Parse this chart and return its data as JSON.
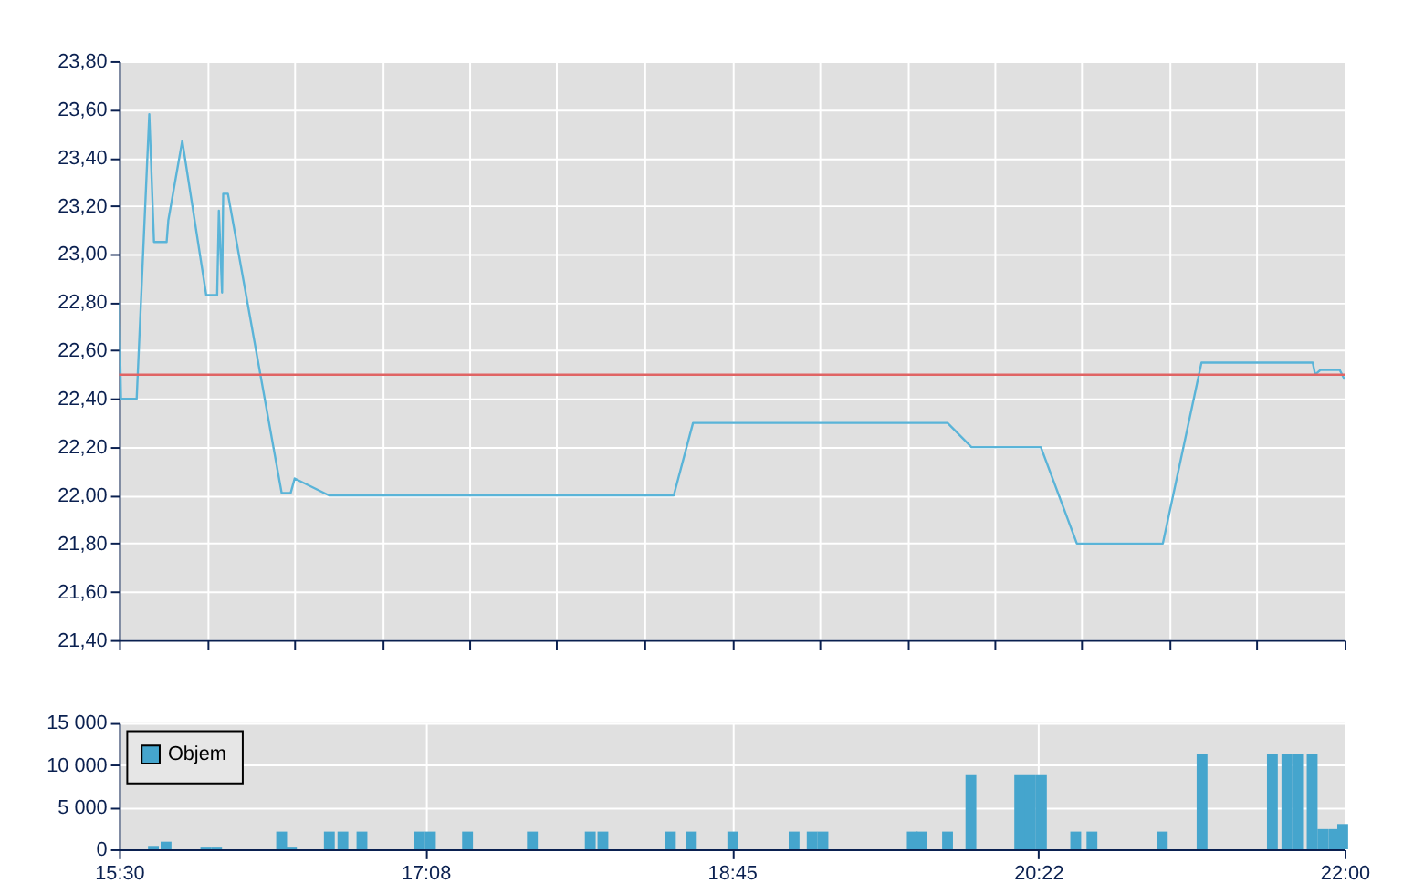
{
  "chart_data": [
    {
      "type": "line",
      "x": [
        15.5,
        15.51,
        15.593,
        15.66,
        15.685,
        15.752,
        15.761,
        15.835,
        15.962,
        16.02,
        16.029,
        16.046,
        16.052,
        16.077,
        16.362,
        16.41,
        16.431,
        16.613,
        18.442,
        18.544,
        19.894,
        20.021,
        20.389,
        20.58,
        21.036,
        21.241,
        21.831,
        21.844,
        21.873,
        21.974,
        22.0
      ],
      "series": [
        {
          "color": "#5ab4d8",
          "values": [
            22.8,
            22.4,
            22.4,
            23.58,
            23.05,
            23.05,
            23.14,
            23.47,
            22.83,
            22.83,
            23.18,
            22.84,
            23.25,
            23.25,
            22.01,
            22.01,
            22.07,
            22.0,
            22.0,
            22.3,
            22.3,
            22.2,
            22.2,
            21.8,
            21.8,
            22.55,
            22.55,
            22.5,
            22.52,
            22.52,
            22.48
          ]
        }
      ],
      "xlim": [
        15.5,
        22.0
      ],
      "xticks": [
        {
          "value": 15.5,
          "label": null
        },
        {
          "value": 15.9643,
          "label": null
        },
        {
          "value": 16.4286,
          "label": null
        },
        {
          "value": 16.8929,
          "label": null
        },
        {
          "value": 17.3571,
          "label": null
        },
        {
          "value": 17.8214,
          "label": null
        },
        {
          "value": 18.2857,
          "label": null
        },
        {
          "value": 18.75,
          "label": null
        },
        {
          "value": 19.2143,
          "label": null
        },
        {
          "value": 19.6786,
          "label": null
        },
        {
          "value": 20.1429,
          "label": null
        },
        {
          "value": 20.6071,
          "label": null
        },
        {
          "value": 21.0714,
          "label": null
        },
        {
          "value": 21.5357,
          "label": null
        },
        {
          "value": 22.0,
          "label": null
        }
      ],
      "ylim": [
        21.4,
        23.8
      ],
      "yticks": [
        {
          "value": 21.4,
          "label": "21,40"
        },
        {
          "value": 21.6,
          "label": "21,60"
        },
        {
          "value": 21.8,
          "label": "21,80"
        },
        {
          "value": 22.0,
          "label": "22,00"
        },
        {
          "value": 22.2,
          "label": "22,20"
        },
        {
          "value": 22.4,
          "label": "22,40"
        },
        {
          "value": 22.6,
          "label": "22,60"
        },
        {
          "value": 22.8,
          "label": "22,80"
        },
        {
          "value": 23.0,
          "label": "23,00"
        },
        {
          "value": 23.2,
          "label": "23,20"
        },
        {
          "value": 23.4,
          "label": "23,40"
        },
        {
          "value": 23.6,
          "label": "23,60"
        },
        {
          "value": 23.8,
          "label": "23,80"
        }
      ],
      "ref_lines": [
        {
          "axis": "y",
          "value": 22.5,
          "color": "#e06464"
        }
      ],
      "grid": true,
      "legend": false,
      "marker": "none",
      "line_style": "solid",
      "tick_labels": "y"
    },
    {
      "type": "bar",
      "x": [
        15.682,
        15.749,
        15.96,
        16.017,
        16.362,
        16.414,
        16.615,
        16.687,
        16.788,
        17.094,
        17.151,
        17.348,
        17.692,
        17.999,
        18.066,
        18.424,
        18.535,
        18.755,
        19.08,
        19.176,
        19.233,
        19.707,
        19.755,
        19.894,
        20.018,
        20.277,
        20.334,
        20.392,
        20.574,
        20.66,
        21.033,
        21.244,
        21.617,
        21.694,
        21.751,
        21.828,
        21.885,
        21.943,
        21.99
      ],
      "series": [
        {
          "name": "Objem",
          "color": "#45a5cd",
          "values": [
            400,
            900,
            200,
            200,
            2100,
            200,
            2100,
            2100,
            2100,
            2100,
            2100,
            2100,
            2100,
            2100,
            2100,
            2100,
            2100,
            2100,
            2100,
            2100,
            2100,
            2100,
            2100,
            2100,
            8800,
            8800,
            8800,
            8800,
            2100,
            2100,
            2100,
            11300,
            11300,
            11300,
            11300,
            11300,
            2400,
            2400,
            3000
          ]
        }
      ],
      "xlim": [
        15.5,
        22.0
      ],
      "xticks": [
        {
          "value": 15.5,
          "label": "15:30"
        },
        {
          "value": 17.125,
          "label": "17:08"
        },
        {
          "value": 18.75,
          "label": "18:45"
        },
        {
          "value": 20.375,
          "label": "20:22"
        },
        {
          "value": 22.0,
          "label": "22:00"
        }
      ],
      "ylim": [
        0,
        15000
      ],
      "yticks": [
        {
          "value": 0,
          "label": "0"
        },
        {
          "value": 5000,
          "label": "5 000"
        },
        {
          "value": 10000,
          "label": "10 000"
        },
        {
          "value": 15000,
          "label": "15 000"
        }
      ],
      "grid": true,
      "legend": "left"
    }
  ]
}
